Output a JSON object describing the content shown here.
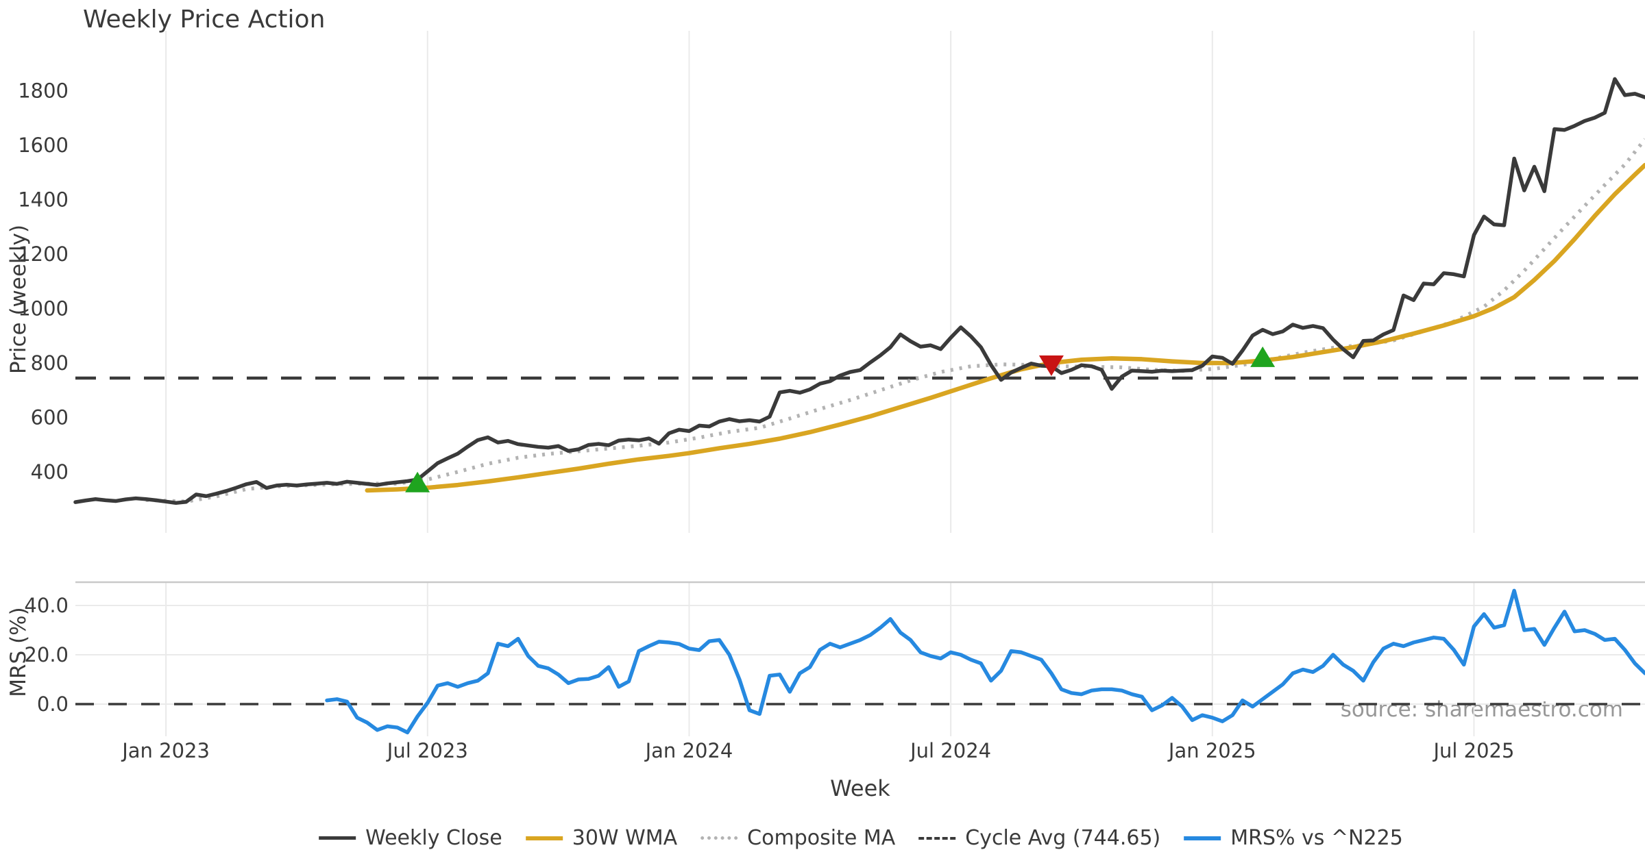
{
  "title": "Weekly Price Action",
  "axes": {
    "price_ylabel": "Price (weekly)",
    "mrs_ylabel": "MRS (%)",
    "xlabel": "Week"
  },
  "watermark": "source: sharemaestro.com",
  "colors": {
    "close": "#3a3a3a",
    "wma": "#d9a521",
    "composite": "#b3b3b3",
    "cycle": "#3a3a3a",
    "mrs": "#2689e0",
    "buy": "#1fa41f",
    "sell": "#c81414",
    "grid": "#eaeaea",
    "spine": "#c9c9c9",
    "tick": "#3a3a3a",
    "watermark": "#8c8c8c"
  },
  "legend": [
    {
      "label": "Weekly Close",
      "style": "solid",
      "color": "#3a3a3a",
      "thickness": 5
    },
    {
      "label": "30W WMA",
      "style": "solid",
      "color": "#d9a521",
      "thickness": 6
    },
    {
      "label": "Composite MA",
      "style": "dotted",
      "color": "#b3b3b3",
      "thickness": 5
    },
    {
      "label": "Cycle Avg (744.65)",
      "style": "dashed",
      "color": "#3a3a3a",
      "thickness": 4
    },
    {
      "label": "MRS% vs ^N225",
      "style": "solid",
      "color": "#2689e0",
      "thickness": 6
    }
  ],
  "chart_data": [
    {
      "type": "line",
      "panel": "price",
      "title": "Weekly Price Action",
      "ylabel": "Price (weekly)",
      "xlabel": "Week",
      "ylim": [
        230,
        2020
      ],
      "yticks": [
        400,
        600,
        800,
        1000,
        1200,
        1400,
        1600,
        1800
      ],
      "x_unit": "week_index",
      "n_weeks": 157,
      "xtick_indices": [
        9,
        35,
        61,
        87,
        113,
        139
      ],
      "xtick_labels": [
        "Jan 2023",
        "Jul 2023",
        "Jan 2024",
        "Jul 2024",
        "Jan 2025",
        "Jul 2025"
      ],
      "grid": "vertical-only",
      "series": [
        {
          "name": "Weekly Close",
          "values": [
            289,
            295,
            300,
            296,
            293,
            299,
            303,
            300,
            296,
            291,
            286,
            290,
            317,
            311,
            320,
            330,
            342,
            355,
            363,
            341,
            350,
            353,
            350,
            354,
            357,
            360,
            356,
            364,
            360,
            356,
            352,
            358,
            362,
            366,
            372,
            402,
            432,
            450,
            467,
            493,
            517,
            527,
            508,
            514,
            502,
            497,
            492,
            489,
            495,
            477,
            483,
            499,
            503,
            498,
            515,
            519,
            516,
            523,
            504,
            542,
            555,
            550,
            570,
            567,
            585,
            594,
            586,
            590,
            585,
            603,
            692,
            698,
            691,
            703,
            724,
            733,
            754,
            767,
            774,
            802,
            828,
            858,
            905,
            880,
            860,
            865,
            851,
            893,
            931,
            898,
            858,
            793,
            738,
            765,
            782,
            798,
            790,
            788,
            763,
            775,
            792,
            788,
            775,
            705,
            750,
            772,
            770,
            768,
            772,
            770,
            772,
            774,
            790,
            824,
            819,
            797,
            846,
            901,
            922,
            906,
            916,
            941,
            929,
            936,
            928,
            886,
            851,
            821,
            881,
            883,
            905,
            921,
            1048,
            1031,
            1092,
            1089,
            1130,
            1126,
            1118,
            1270,
            1338,
            1309,
            1306,
            1551,
            1434,
            1521,
            1431,
            1659,
            1656,
            1671,
            1689,
            1701,
            1719,
            1843,
            1784,
            1789,
            1776
          ]
        },
        {
          "name": "30W WMA",
          "anchors": [
            [
              29,
              332
            ],
            [
              32,
              336
            ],
            [
              35,
              342
            ],
            [
              38,
              352
            ],
            [
              41,
              365
            ],
            [
              44,
              380
            ],
            [
              47,
              396
            ],
            [
              50,
              412
            ],
            [
              53,
              430
            ],
            [
              56,
              446
            ],
            [
              59,
              459
            ],
            [
              61,
              469
            ],
            [
              64,
              487
            ],
            [
              67,
              503
            ],
            [
              70,
              522
            ],
            [
              73,
              546
            ],
            [
              76,
              574
            ],
            [
              79,
              604
            ],
            [
              82,
              638
            ],
            [
              85,
              672
            ],
            [
              88,
              708
            ],
            [
              91,
              744
            ],
            [
              94,
              777
            ],
            [
              97,
              800
            ],
            [
              100,
              812
            ],
            [
              103,
              817
            ],
            [
              106,
              814
            ],
            [
              109,
              806
            ],
            [
              112,
              800
            ],
            [
              115,
              800
            ],
            [
              118,
              809
            ],
            [
              121,
              822
            ],
            [
              124,
              840
            ],
            [
              127,
              858
            ],
            [
              130,
              880
            ],
            [
              133,
              908
            ],
            [
              136,
              938
            ],
            [
              139,
              972
            ],
            [
              141,
              1002
            ],
            [
              143,
              1042
            ],
            [
              145,
              1105
            ],
            [
              147,
              1175
            ],
            [
              149,
              1255
            ],
            [
              151,
              1340
            ],
            [
              153,
              1420
            ],
            [
              155,
              1492
            ],
            [
              156,
              1527
            ]
          ]
        },
        {
          "name": "Composite MA",
          "anchors": [
            [
              7,
              297
            ],
            [
              11,
              291
            ],
            [
              14,
              310
            ],
            [
              17,
              337
            ],
            [
              20,
              347
            ],
            [
              23,
              351
            ],
            [
              26,
              355
            ],
            [
              29,
              357
            ],
            [
              32,
              357
            ],
            [
              35,
              372
            ],
            [
              38,
              400
            ],
            [
              41,
              430
            ],
            [
              44,
              452
            ],
            [
              47,
              466
            ],
            [
              50,
              476
            ],
            [
              53,
              486
            ],
            [
              56,
              496
            ],
            [
              59,
              508
            ],
            [
              62,
              526
            ],
            [
              65,
              547
            ],
            [
              68,
              562
            ],
            [
              71,
              596
            ],
            [
              74,
              631
            ],
            [
              77,
              664
            ],
            [
              80,
              700
            ],
            [
              83,
              736
            ],
            [
              86,
              767
            ],
            [
              89,
              788
            ],
            [
              92,
              795
            ],
            [
              95,
              793
            ],
            [
              98,
              788
            ],
            [
              101,
              786
            ],
            [
              104,
              784
            ],
            [
              107,
              775
            ],
            [
              110,
              771
            ],
            [
              113,
              778
            ],
            [
              116,
              793
            ],
            [
              119,
              815
            ],
            [
              122,
              838
            ],
            [
              125,
              856
            ],
            [
              128,
              866
            ],
            [
              131,
              883
            ],
            [
              134,
              917
            ],
            [
              137,
              952
            ],
            [
              140,
              1007
            ],
            [
              142,
              1067
            ],
            [
              144,
              1139
            ],
            [
              146,
              1219
            ],
            [
              148,
              1299
            ],
            [
              150,
              1377
            ],
            [
              152,
              1454
            ],
            [
              154,
              1529
            ],
            [
              156,
              1622
            ]
          ]
        },
        {
          "name": "Cycle Avg",
          "value": 744.65
        }
      ],
      "markers": {
        "buy": [
          [
            34,
            358
          ],
          [
            118,
            818
          ]
        ],
        "sell": [
          [
            97,
            795
          ]
        ]
      }
    },
    {
      "type": "line",
      "panel": "mrs",
      "ylabel": "MRS (%)",
      "ylim": [
        -14,
        49
      ],
      "yticks": [
        0,
        20,
        40
      ],
      "ytick_labels": [
        "0.0",
        "20.0",
        "40.0"
      ],
      "zero_line": 0,
      "series": [
        {
          "name": "MRS% vs ^N225",
          "start_index": 25,
          "values": [
            1.5,
            2,
            1,
            -5.5,
            -7.5,
            -10.5,
            -9,
            -9.5,
            -11.5,
            -5,
            0.5,
            7.5,
            8.5,
            7,
            8.5,
            9.5,
            12.5,
            24.5,
            23.5,
            26.5,
            19.5,
            15.5,
            14.5,
            12,
            8.5,
            10,
            10.2,
            11.5,
            15,
            7,
            9.2,
            21.5,
            23.5,
            25.3,
            25,
            24.4,
            22.5,
            21.9,
            25.5,
            26,
            20,
            10,
            -2.5,
            -4,
            11.5,
            12,
            5,
            12.5,
            15,
            22,
            24.5,
            23,
            24.5,
            26,
            28,
            31,
            34.5,
            29,
            26,
            21,
            19.5,
            18.5,
            21,
            20,
            18,
            16.5,
            9.5,
            13.5,
            21.5,
            21,
            19.5,
            18,
            12.5,
            6,
            4.5,
            4,
            5.5,
            6,
            6,
            5.5,
            4,
            3,
            -2.5,
            -0.5,
            2.5,
            -1,
            -6.5,
            -4.5,
            -5.5,
            -7,
            -4.5,
            1.5,
            -1,
            2,
            5,
            8,
            12.5,
            14,
            13,
            15.5,
            20,
            16,
            13.5,
            9.5,
            17,
            22.5,
            24.5,
            23.5,
            25,
            26,
            27,
            26.5,
            22,
            16,
            31.5,
            36.5,
            31,
            32,
            46,
            30,
            30.5,
            24,
            31,
            37.5,
            29.5,
            30,
            28.5,
            26,
            26.5,
            22,
            16.5,
            12.5
          ]
        }
      ]
    }
  ]
}
